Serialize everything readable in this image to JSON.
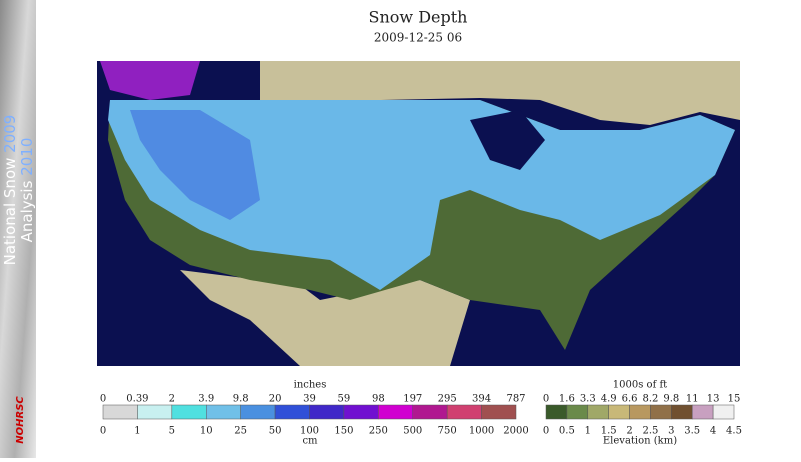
{
  "banner": {
    "line1": "National Snow",
    "year1": "2009",
    "line2": "Analysis",
    "year2": "2010",
    "logo": "NOHRSC"
  },
  "header": {
    "title": "Snow Depth",
    "date": "2009-12-25 06"
  },
  "snow_legend": {
    "top_unit": "inches",
    "bottom_unit": "cm",
    "top_labels": [
      0,
      0.39,
      2,
      3.9,
      9.8,
      20,
      39,
      59,
      98,
      197,
      295,
      394,
      787
    ],
    "bottom_labels": [
      0,
      1,
      5,
      10,
      25,
      50,
      100,
      150,
      250,
      500,
      750,
      1000,
      2000
    ],
    "colors": [
      "#d8d8d8",
      "#c8f0f0",
      "#50e0e0",
      "#70c0e8",
      "#4a90e0",
      "#3050d8",
      "#4028c8",
      "#7010d0",
      "#d000d0",
      "#b01890",
      "#d04070",
      "#a05050"
    ]
  },
  "elevation_legend": {
    "top_unit": "1000s of ft",
    "bottom_unit": "Elevation (km)",
    "top_labels": [
      0,
      1.6,
      3.3,
      4.9,
      6.6,
      8.2,
      9.8,
      11,
      13,
      15
    ],
    "bottom_labels": [
      0,
      0.5,
      1,
      1.5,
      2,
      2.5,
      3,
      3.5,
      4,
      4.5
    ],
    "colors": [
      "#3a5a2a",
      "#6a8a4a",
      "#a0a868",
      "#c8b878",
      "#b89860",
      "#907048",
      "#705030",
      "#c8a0c0",
      "#f0f0f0"
    ]
  }
}
